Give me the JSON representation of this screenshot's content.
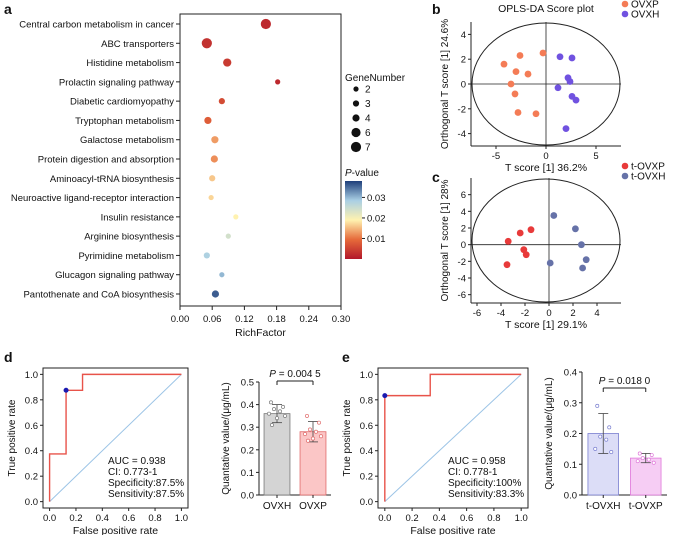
{
  "panels": {
    "a": "a",
    "b": "b",
    "c": "c",
    "d": "d",
    "e": "e"
  },
  "chart_data": [
    {
      "panel": "a",
      "type": "scatter",
      "subtype": "kegg-enrichment-bubble",
      "xlabel": "RichFactor",
      "xlim": [
        0,
        0.3
      ],
      "xticks": [
        "0.00",
        "0.06",
        "0.12",
        "0.18",
        "0.24",
        "0.30"
      ],
      "categories": [
        "Central carbon metabolism in cancer",
        "ABC transporters",
        "Histidine metabolism",
        "Prolactin signaling pathway",
        "Diabetic cardiomyopathy",
        "Tryptophan metabolism",
        "Galactose metabolism",
        "Protein digestion and absorption",
        "Aminoacyl-tRNA biosynthesis",
        "Neuroactive ligand-receptor interaction",
        "Insulin resistance",
        "Arginine biosynthesis",
        "Pyrimidine metabolism",
        "Glucagon signaling pathway",
        "Pantothenate and CoA biosynthesis"
      ],
      "x": [
        0.16,
        0.05,
        0.088,
        0.182,
        0.078,
        0.052,
        0.065,
        0.064,
        0.06,
        0.058,
        0.104,
        0.09,
        0.05,
        0.078,
        0.066
      ],
      "gene_number": [
        7,
        7,
        5,
        2,
        3,
        4,
        4,
        4,
        3,
        2,
        2,
        2,
        3,
        2,
        4
      ],
      "p_value": [
        0.002,
        0.003,
        0.004,
        0.002,
        0.006,
        0.008,
        0.013,
        0.012,
        0.016,
        0.017,
        0.019,
        0.024,
        0.028,
        0.03,
        0.036
      ],
      "size_legend": {
        "title": "GeneNumber",
        "values": [
          "2",
          "3",
          "4",
          "6",
          "7"
        ]
      },
      "color_legend": {
        "title_italic": "P",
        "title_rest": "-value",
        "ticks": [
          "0.03",
          "0.02",
          "0.01"
        ],
        "range": [
          0.0,
          0.038
        ]
      }
    },
    {
      "panel": "b",
      "type": "scatter",
      "title": "OPLS-DA Score plot",
      "xlabel": "T score [1] 36.2%",
      "ylabel": "Orthogonal T score [1] 24.6%",
      "xlim": [
        -7.5,
        7.5
      ],
      "ylim": [
        -5,
        5
      ],
      "xticks": [
        -5,
        0,
        5
      ],
      "yticks": [
        4,
        2,
        0,
        -2,
        -4
      ],
      "series": [
        {
          "name": "OVXP",
          "color": "#F47C56",
          "points": [
            [
              -2.6,
              2.3
            ],
            [
              -0.3,
              2.5
            ],
            [
              -4.2,
              1.6
            ],
            [
              -3.0,
              1.0
            ],
            [
              -1.8,
              0.8
            ],
            [
              -3.5,
              0.0
            ],
            [
              -3.1,
              -0.8
            ],
            [
              -2.8,
              -2.3
            ],
            [
              -1.0,
              -2.4
            ]
          ]
        },
        {
          "name": "OVXH",
          "color": "#7052E0",
          "points": [
            [
              1.4,
              2.2
            ],
            [
              2.6,
              2.1
            ],
            [
              2.2,
              0.5
            ],
            [
              2.4,
              0.2
            ],
            [
              1.2,
              -0.3
            ],
            [
              2.6,
              -1.0
            ],
            [
              3.0,
              -1.3
            ],
            [
              2.0,
              -3.6
            ]
          ]
        }
      ]
    },
    {
      "panel": "c",
      "type": "scatter",
      "xlabel": "T score [1] 29.1%",
      "ylabel": "Orthogonal T score [1] 28%",
      "xlim": [
        -6.5,
        6
      ],
      "ylim": [
        -7,
        8
      ],
      "xticks": [
        -6,
        -4,
        -2,
        0,
        2,
        4
      ],
      "yticks": [
        6,
        4,
        2,
        0,
        -2,
        -4,
        -6
      ],
      "series": [
        {
          "name": "t-OVXP",
          "color": "#E83A3A",
          "points": [
            [
              -1.5,
              1.8
            ],
            [
              -2.4,
              1.4
            ],
            [
              -3.4,
              0.4
            ],
            [
              -2.1,
              -0.6
            ],
            [
              -1.9,
              -1.2
            ],
            [
              -3.5,
              -2.4
            ]
          ]
        },
        {
          "name": "t-OVXH",
          "color": "#6672A8",
          "points": [
            [
              0.4,
              3.5
            ],
            [
              2.2,
              1.9
            ],
            [
              2.7,
              0.0
            ],
            [
              3.1,
              -1.8
            ],
            [
              2.8,
              -2.8
            ],
            [
              0.1,
              -2.2
            ]
          ]
        }
      ]
    },
    {
      "panel": "d-roc",
      "type": "line",
      "xlabel": "False positive rate",
      "ylabel": "True positive rate",
      "xlim": [
        0,
        1
      ],
      "ylim": [
        0,
        1
      ],
      "xticks": [
        "0.0",
        "0.2",
        "0.4",
        "0.6",
        "0.8",
        "1.0"
      ],
      "yticks": [
        "0.0",
        "0.2",
        "0.4",
        "0.6",
        "0.8",
        "1.0"
      ],
      "roc_x": [
        0,
        0,
        0.125,
        0.125,
        0.25,
        0.25,
        1.0
      ],
      "roc_y": [
        0,
        0.375,
        0.375,
        0.875,
        0.875,
        1.0,
        1.0
      ],
      "cutoff": [
        0.125,
        0.875
      ],
      "stats": [
        "AUC = 0.938",
        "CI: 0.773-1",
        "Specificity:87.5%",
        "Sensitivity:87.5%"
      ]
    },
    {
      "panel": "d-bar",
      "type": "bar",
      "ylabel": "Quantative value/(μg/mL)",
      "ylim": [
        0,
        0.5
      ],
      "yticks": [
        "0.0",
        "0.1",
        "0.2",
        "0.3",
        "0.4",
        "0.5"
      ],
      "categories": [
        "OVXH",
        "OVXP"
      ],
      "values": [
        0.36,
        0.28
      ],
      "sd": [
        0.04,
        0.045
      ],
      "colors": [
        "#D4D4D4",
        "#FBC6C6"
      ],
      "edge_colors": [
        "#777777",
        "#E06A6A"
      ],
      "points": [
        [
          0.41,
          0.39,
          0.38,
          0.37,
          0.36,
          0.35,
          0.34,
          0.31
        ],
        [
          0.35,
          0.32,
          0.29,
          0.28,
          0.27,
          0.26,
          0.25,
          0.24
        ]
      ],
      "p_prefix": "P",
      "p_text": " = 0.004 5"
    },
    {
      "panel": "e-roc",
      "type": "line",
      "xlabel": "False positive rate",
      "ylabel": "True positive rate",
      "xlim": [
        0,
        1
      ],
      "ylim": [
        0,
        1
      ],
      "xticks": [
        "0.0",
        "0.2",
        "0.4",
        "0.6",
        "0.8",
        "1.0"
      ],
      "yticks": [
        "0.0",
        "0.2",
        "0.4",
        "0.6",
        "0.8",
        "1.0"
      ],
      "roc_x": [
        0,
        0,
        0.333,
        0.333,
        1.0
      ],
      "roc_y": [
        0,
        0.833,
        0.833,
        1.0,
        1.0
      ],
      "cutoff": [
        0.0,
        0.833
      ],
      "stats": [
        "AUC = 0.958",
        "CI: 0.778-1",
        "Specificity:100%",
        "Sensitivity:83.3%"
      ]
    },
    {
      "panel": "e-bar",
      "type": "bar",
      "ylabel": "Quantative value/(μg/mL)",
      "ylim": [
        0,
        0.4
      ],
      "yticks": [
        "0.0",
        "0.1",
        "0.2",
        "0.3",
        "0.4"
      ],
      "categories": [
        "t-OVXH",
        "t-OVXP"
      ],
      "values": [
        0.2,
        0.12
      ],
      "sd": [
        0.065,
        0.015
      ],
      "colors": [
        "#DCDDF7",
        "#F6CDF4"
      ],
      "edge_colors": [
        "#7A7FD0",
        "#E078DA"
      ],
      "points": [
        [
          0.29,
          0.22,
          0.19,
          0.18,
          0.15,
          0.14
        ],
        [
          0.135,
          0.13,
          0.12,
          0.115,
          0.11,
          0.105
        ]
      ],
      "p_prefix": "P",
      "p_text": " = 0.018 0"
    }
  ]
}
